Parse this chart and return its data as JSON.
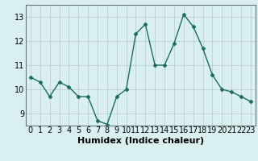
{
  "x": [
    0,
    1,
    2,
    3,
    4,
    5,
    6,
    7,
    8,
    9,
    10,
    11,
    12,
    13,
    14,
    15,
    16,
    17,
    18,
    19,
    20,
    21,
    22,
    23
  ],
  "y": [
    10.5,
    10.3,
    9.7,
    10.3,
    10.1,
    9.7,
    9.7,
    8.7,
    8.55,
    9.7,
    10.0,
    12.3,
    12.7,
    11.0,
    11.0,
    11.9,
    13.1,
    12.6,
    11.7,
    10.6,
    10.0,
    9.9,
    9.7,
    9.5
  ],
  "line_color": "#1a6b5e",
  "marker": "D",
  "markersize": 2.5,
  "linewidth": 1.0,
  "bg_color": "#daf0f0",
  "grid_color_major": "#b8c8c8",
  "grid_color_minor": "#c8d8d8",
  "xlabel": "Humidex (Indice chaleur)",
  "xlim": [
    -0.5,
    23.5
  ],
  "ylim": [
    8.5,
    13.5
  ],
  "yticks": [
    9,
    10,
    11,
    12,
    13
  ],
  "xlabel_fontsize": 8,
  "tick_fontsize": 7
}
